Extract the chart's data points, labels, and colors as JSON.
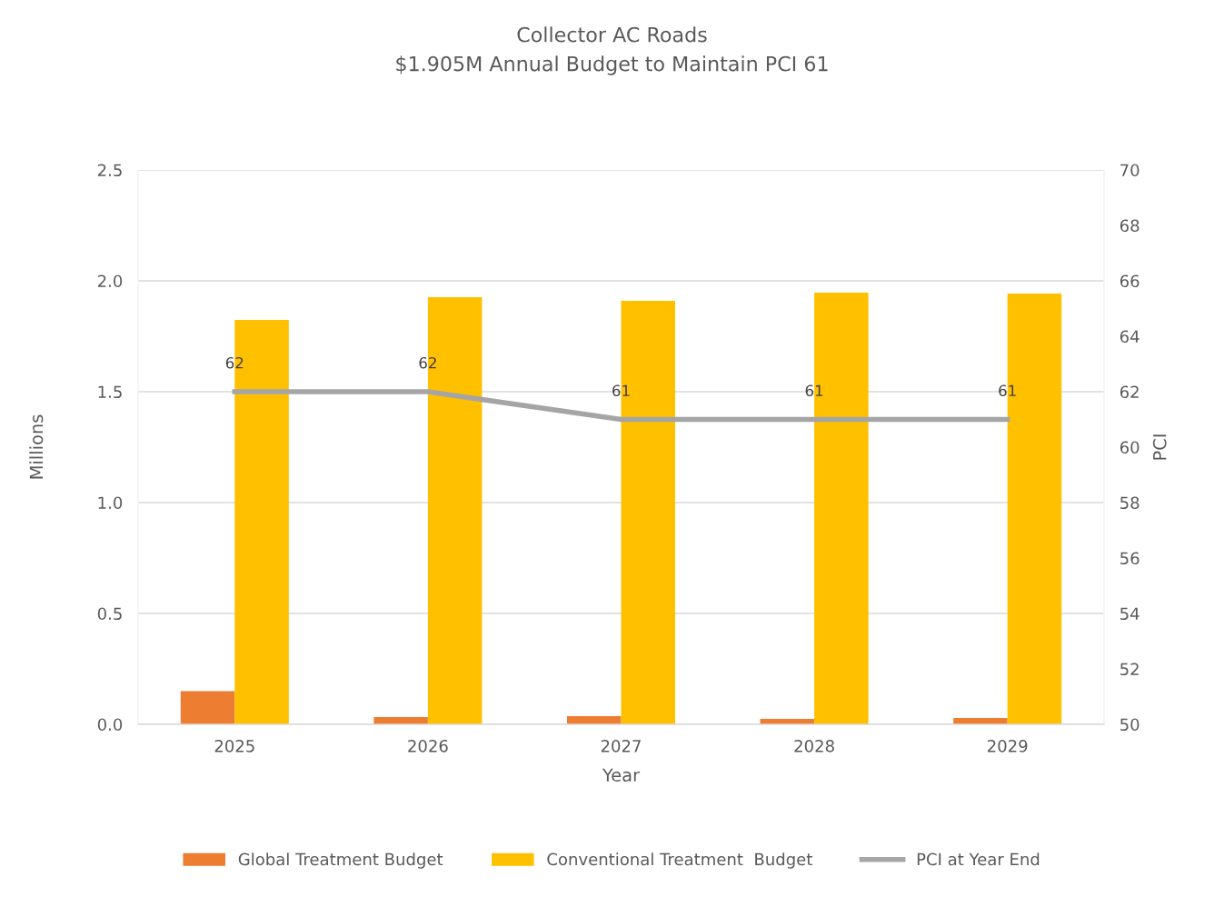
{
  "chart_data": {
    "type": "bar",
    "title": "Collector AC Roads",
    "subtitle": "$1.905M Annual Budget to Maintain PCI 61",
    "xlabel": "Year",
    "ylabel": "Millions",
    "y2label": "PCI",
    "categories": [
      "2025",
      "2026",
      "2027",
      "2028",
      "2029"
    ],
    "series": [
      {
        "name": "Global Treatment Budget",
        "color": "#ed7d31",
        "values": [
          0.15,
          0.033,
          0.037,
          0.025,
          0.029
        ]
      },
      {
        "name": "Conventional Treatment  Budget",
        "color": "#ffc000",
        "values": [
          1.824,
          1.926,
          1.91,
          1.947,
          1.943
        ]
      },
      {
        "name": "PCI at Year End",
        "type": "line",
        "axis": "y2",
        "color": "#a5a5a5",
        "values": [
          62,
          62,
          61,
          61,
          61
        ],
        "value_labels": [
          "62",
          "62",
          "61",
          "61",
          "61"
        ]
      }
    ],
    "ylim": [
      0,
      2.5
    ],
    "yticks": [
      {
        "value": 0,
        "label": "0.0"
      },
      {
        "value": 0.5,
        "label": "0.5"
      },
      {
        "value": 1,
        "label": "1.0"
      },
      {
        "value": 1.5,
        "label": "1.5"
      },
      {
        "value": 2,
        "label": "2.0"
      },
      {
        "value": 2.5,
        "label": "2.5"
      }
    ],
    "y2lim": [
      50,
      70
    ],
    "y2ticks": [
      50,
      52,
      54,
      56,
      58,
      60,
      62,
      64,
      66,
      68,
      70
    ],
    "grid": "y",
    "legend": "bottom",
    "marker": "none",
    "line_style": "solid"
  }
}
